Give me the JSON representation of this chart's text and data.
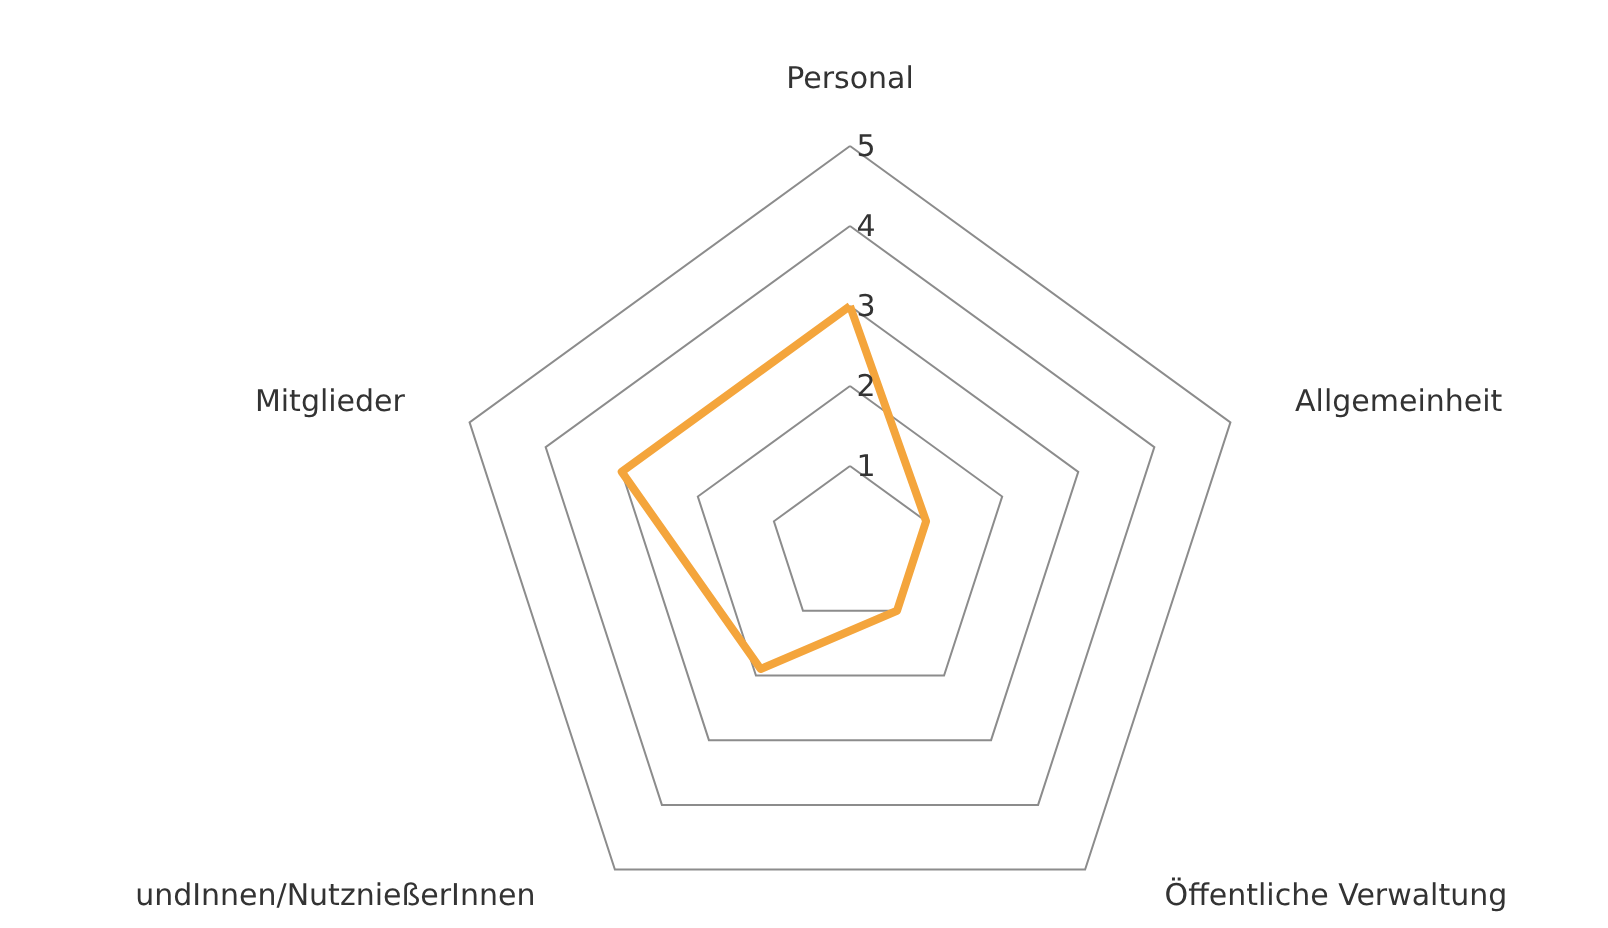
{
  "chart_data": {
    "type": "radar",
    "categories": [
      "Personal",
      "Allgemeinheit",
      "Öffentliche Verwaltung",
      "undInnen/NutznießerInnen",
      "Mitglieder"
    ],
    "series": [
      {
        "color": "#f4a53c",
        "values": [
          3,
          1,
          1,
          1.9,
          3
        ]
      }
    ],
    "ylim": [
      0,
      5
    ],
    "yticks": [
      1,
      2,
      3,
      4,
      5
    ],
    "grid": true
  }
}
